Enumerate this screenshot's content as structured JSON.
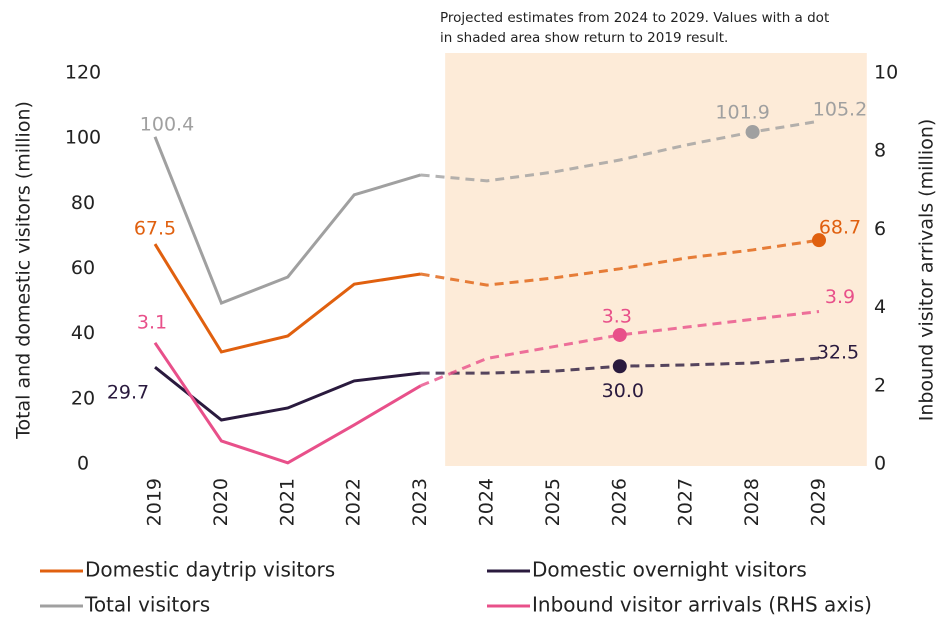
{
  "chart_data": {
    "type": "line",
    "annotation": [
      "Projected estimates from 2024 to 2029.  Values with a dot",
      "in shaded area show return to 2019 result."
    ],
    "y_label": "Total and domestic visitors (million)",
    "y2_label": "Inbound visitor arrivals (million)",
    "categories": [
      "2019",
      "2020",
      "2021",
      "2022",
      "2023",
      "2024",
      "2025",
      "2026",
      "2027",
      "2028",
      "2029"
    ],
    "shaded_region": [
      "2024",
      "2029"
    ],
    "ylim": [
      0,
      120
    ],
    "yticks": [
      0,
      20,
      40,
      60,
      80,
      100,
      120
    ],
    "y2lim": [
      0,
      10
    ],
    "y2ticks": [
      0,
      2,
      4,
      6,
      8,
      10
    ],
    "series": [
      {
        "name": "Domestic daytrip visitors",
        "color": "#e0600f",
        "values": [
          67.5,
          34.4,
          39.3,
          55.2,
          58.3,
          54.9,
          57.1,
          59.9,
          63.2,
          65.7,
          68.7
        ],
        "value_labels": [
          "67.5",
          null,
          null,
          null,
          null,
          null,
          null,
          null,
          null,
          null,
          "68.7"
        ],
        "dot_indices": [
          10
        ]
      },
      {
        "name": "Domestic overnight visitors",
        "color": "#2a1a3e",
        "values": [
          29.7,
          13.5,
          17.2,
          25.5,
          27.9,
          27.9,
          28.5,
          30.0,
          30.4,
          31.0,
          32.5
        ],
        "value_labels": [
          "29.7",
          null,
          null,
          null,
          null,
          null,
          null,
          "30.0",
          null,
          null,
          "32.5"
        ],
        "dot_indices": [
          7
        ]
      },
      {
        "name": "Total visitors",
        "color": "#a0a0a0",
        "values": [
          100.4,
          49.4,
          57.4,
          82.6,
          88.7,
          86.9,
          89.6,
          93.3,
          97.9,
          101.9,
          105.2
        ],
        "value_labels": [
          "100.4",
          null,
          null,
          null,
          null,
          null,
          null,
          null,
          null,
          "101.9",
          "105.2"
        ],
        "dot_indices": [
          9
        ]
      },
      {
        "name": "Inbound visitor arrivals (RHS axis)",
        "color": "#e8508a",
        "axis": "y2",
        "values": [
          3.1,
          0.59,
          0.03,
          1.0,
          2.0,
          2.7,
          3.0,
          3.3,
          3.5,
          3.7,
          3.9
        ],
        "value_labels": [
          "3.1",
          null,
          null,
          null,
          null,
          null,
          null,
          "3.3",
          null,
          null,
          "3.9"
        ],
        "dot_indices": [
          7
        ]
      }
    ]
  }
}
